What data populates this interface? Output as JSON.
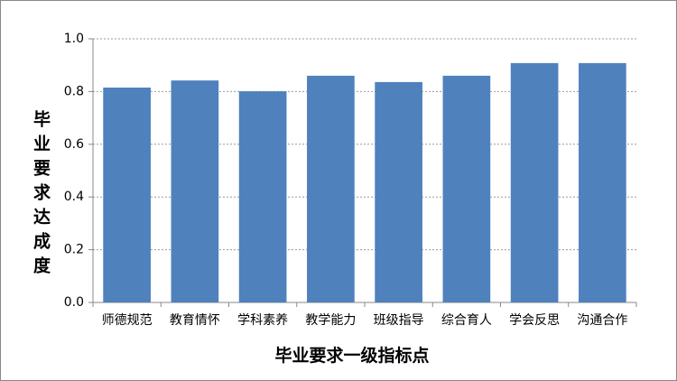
{
  "chart_data": {
    "type": "bar",
    "x_label": "毕业要求一级指标点",
    "y_label": "毕业要求达成度",
    "categories": [
      "师德规范",
      "教育情怀",
      "学科素养",
      "教学能力",
      "班级指导",
      "综合育人",
      "学会反思",
      "沟通合作"
    ],
    "values": [
      0.815,
      0.842,
      0.801,
      0.86,
      0.836,
      0.86,
      0.908,
      0.908
    ],
    "color": "#4f81bd",
    "ylim": [
      0,
      1
    ],
    "yticks": [
      {
        "value": 0,
        "label": "0.0"
      },
      0.2,
      0.4,
      0.6,
      0.8,
      {
        "value": 1,
        "label": "1.0"
      }
    ],
    "grid": true
  }
}
